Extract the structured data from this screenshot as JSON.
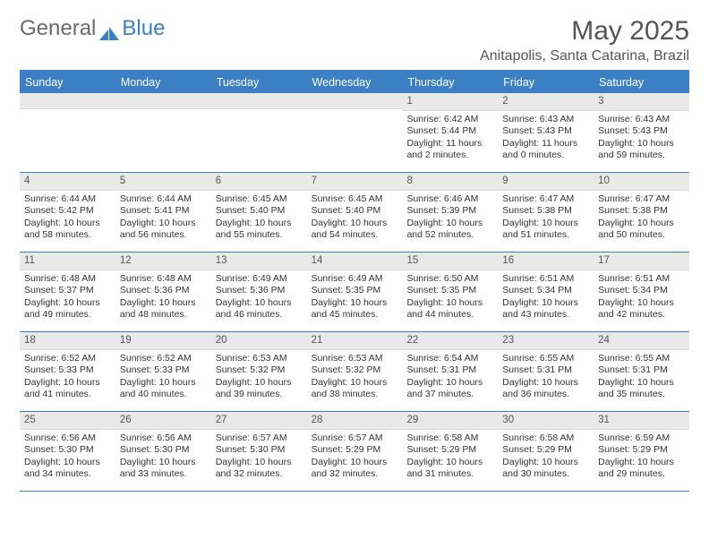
{
  "logo": {
    "text_gray": "General",
    "text_blue": "Blue"
  },
  "month_title": "May 2025",
  "location": "Anitapolis, Santa Catarina, Brazil",
  "colors": {
    "header_blue": "#3b7fc4",
    "row_border": "#3b7fc4",
    "day_header_bg": "#e9e9e9",
    "text": "#333333",
    "title_text": "#555555"
  },
  "dow": [
    "Sunday",
    "Monday",
    "Tuesday",
    "Wednesday",
    "Thursday",
    "Friday",
    "Saturday"
  ],
  "weeks": [
    [
      null,
      null,
      null,
      null,
      {
        "n": "1",
        "sr": "6:42 AM",
        "ss": "5:44 PM",
        "dl": "11 hours and 2 minutes."
      },
      {
        "n": "2",
        "sr": "6:43 AM",
        "ss": "5:43 PM",
        "dl": "11 hours and 0 minutes."
      },
      {
        "n": "3",
        "sr": "6:43 AM",
        "ss": "5:43 PM",
        "dl": "10 hours and 59 minutes."
      }
    ],
    [
      {
        "n": "4",
        "sr": "6:44 AM",
        "ss": "5:42 PM",
        "dl": "10 hours and 58 minutes."
      },
      {
        "n": "5",
        "sr": "6:44 AM",
        "ss": "5:41 PM",
        "dl": "10 hours and 56 minutes."
      },
      {
        "n": "6",
        "sr": "6:45 AM",
        "ss": "5:40 PM",
        "dl": "10 hours and 55 minutes."
      },
      {
        "n": "7",
        "sr": "6:45 AM",
        "ss": "5:40 PM",
        "dl": "10 hours and 54 minutes."
      },
      {
        "n": "8",
        "sr": "6:46 AM",
        "ss": "5:39 PM",
        "dl": "10 hours and 52 minutes."
      },
      {
        "n": "9",
        "sr": "6:47 AM",
        "ss": "5:38 PM",
        "dl": "10 hours and 51 minutes."
      },
      {
        "n": "10",
        "sr": "6:47 AM",
        "ss": "5:38 PM",
        "dl": "10 hours and 50 minutes."
      }
    ],
    [
      {
        "n": "11",
        "sr": "6:48 AM",
        "ss": "5:37 PM",
        "dl": "10 hours and 49 minutes."
      },
      {
        "n": "12",
        "sr": "6:48 AM",
        "ss": "5:36 PM",
        "dl": "10 hours and 48 minutes."
      },
      {
        "n": "13",
        "sr": "6:49 AM",
        "ss": "5:36 PM",
        "dl": "10 hours and 46 minutes."
      },
      {
        "n": "14",
        "sr": "6:49 AM",
        "ss": "5:35 PM",
        "dl": "10 hours and 45 minutes."
      },
      {
        "n": "15",
        "sr": "6:50 AM",
        "ss": "5:35 PM",
        "dl": "10 hours and 44 minutes."
      },
      {
        "n": "16",
        "sr": "6:51 AM",
        "ss": "5:34 PM",
        "dl": "10 hours and 43 minutes."
      },
      {
        "n": "17",
        "sr": "6:51 AM",
        "ss": "5:34 PM",
        "dl": "10 hours and 42 minutes."
      }
    ],
    [
      {
        "n": "18",
        "sr": "6:52 AM",
        "ss": "5:33 PM",
        "dl": "10 hours and 41 minutes."
      },
      {
        "n": "19",
        "sr": "6:52 AM",
        "ss": "5:33 PM",
        "dl": "10 hours and 40 minutes."
      },
      {
        "n": "20",
        "sr": "6:53 AM",
        "ss": "5:32 PM",
        "dl": "10 hours and 39 minutes."
      },
      {
        "n": "21",
        "sr": "6:53 AM",
        "ss": "5:32 PM",
        "dl": "10 hours and 38 minutes."
      },
      {
        "n": "22",
        "sr": "6:54 AM",
        "ss": "5:31 PM",
        "dl": "10 hours and 37 minutes."
      },
      {
        "n": "23",
        "sr": "6:55 AM",
        "ss": "5:31 PM",
        "dl": "10 hours and 36 minutes."
      },
      {
        "n": "24",
        "sr": "6:55 AM",
        "ss": "5:31 PM",
        "dl": "10 hours and 35 minutes."
      }
    ],
    [
      {
        "n": "25",
        "sr": "6:56 AM",
        "ss": "5:30 PM",
        "dl": "10 hours and 34 minutes."
      },
      {
        "n": "26",
        "sr": "6:56 AM",
        "ss": "5:30 PM",
        "dl": "10 hours and 33 minutes."
      },
      {
        "n": "27",
        "sr": "6:57 AM",
        "ss": "5:30 PM",
        "dl": "10 hours and 32 minutes."
      },
      {
        "n": "28",
        "sr": "6:57 AM",
        "ss": "5:29 PM",
        "dl": "10 hours and 32 minutes."
      },
      {
        "n": "29",
        "sr": "6:58 AM",
        "ss": "5:29 PM",
        "dl": "10 hours and 31 minutes."
      },
      {
        "n": "30",
        "sr": "6:58 AM",
        "ss": "5:29 PM",
        "dl": "10 hours and 30 minutes."
      },
      {
        "n": "31",
        "sr": "6:59 AM",
        "ss": "5:29 PM",
        "dl": "10 hours and 29 minutes."
      }
    ]
  ],
  "labels": {
    "sunrise_prefix": "Sunrise: ",
    "sunset_prefix": "Sunset: ",
    "daylight_prefix": "Daylight: "
  }
}
